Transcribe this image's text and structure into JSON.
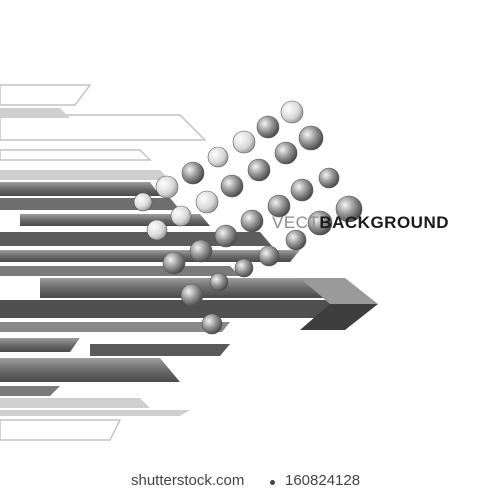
{
  "title": {
    "light": "VECT",
    "bold": "BACKGROUND"
  },
  "watermark": {
    "site": "shutterstock.com",
    "id": "160824128"
  },
  "colors": {
    "bar_dark": "#5a5a5a",
    "bar_mid": "#8c8c8c",
    "bar_light": "#c8c8c8",
    "outline": "#bfbfbf"
  }
}
